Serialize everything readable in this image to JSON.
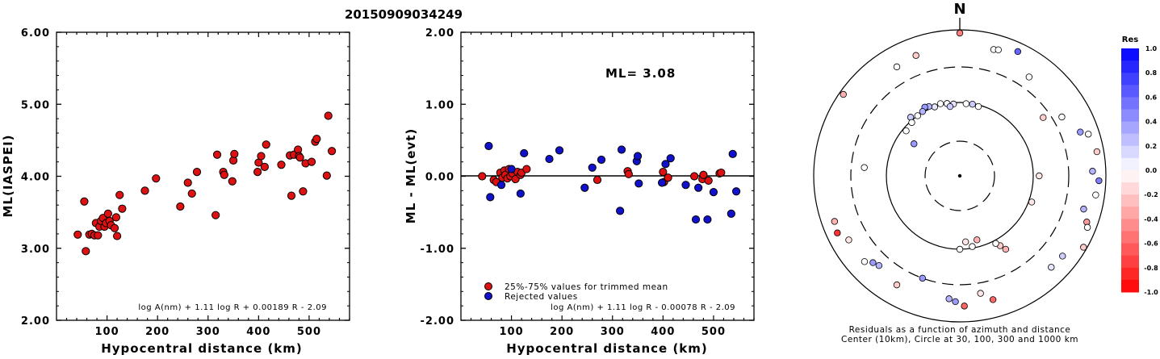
{
  "title": "20150909034249",
  "chart_data": [
    {
      "type": "scatter",
      "title": "",
      "xlabel": "Hypocentral distance (km)",
      "ylabel": "ML(IASPEI)",
      "xlim": [
        0,
        580
      ],
      "ylim": [
        2.0,
        6.0
      ],
      "xticks": [
        "100",
        "200",
        "300",
        "400",
        "500"
      ],
      "yticks": [
        "2.00",
        "3.00",
        "4.00",
        "5.00",
        "6.00"
      ],
      "annotation": "log A(nm) + 1.11 log R + 0.00189 R - 2.09",
      "point_color": "#dd1111",
      "points": [
        [
          42,
          3.19
        ],
        [
          55,
          3.65
        ],
        [
          58,
          2.96
        ],
        [
          65,
          3.19
        ],
        [
          70,
          3.2
        ],
        [
          75,
          3.18
        ],
        [
          78,
          3.35
        ],
        [
          82,
          3.18
        ],
        [
          85,
          3.3
        ],
        [
          88,
          3.38
        ],
        [
          92,
          3.42
        ],
        [
          95,
          3.3
        ],
        [
          98,
          3.35
        ],
        [
          102,
          3.48
        ],
        [
          105,
          3.38
        ],
        [
          108,
          3.32
        ],
        [
          115,
          3.28
        ],
        [
          118,
          3.43
        ],
        [
          120,
          3.17
        ],
        [
          125,
          3.74
        ],
        [
          130,
          3.55
        ],
        [
          175,
          3.8
        ],
        [
          197,
          3.97
        ],
        [
          245,
          3.58
        ],
        [
          260,
          3.91
        ],
        [
          268,
          3.76
        ],
        [
          278,
          4.06
        ],
        [
          315,
          3.46
        ],
        [
          318,
          4.3
        ],
        [
          330,
          4.06
        ],
        [
          332,
          4.02
        ],
        [
          348,
          3.93
        ],
        [
          350,
          4.22
        ],
        [
          352,
          4.31
        ],
        [
          398,
          4.06
        ],
        [
          400,
          4.19
        ],
        [
          405,
          4.28
        ],
        [
          412,
          4.13
        ],
        [
          415,
          4.44
        ],
        [
          445,
          4.16
        ],
        [
          462,
          4.29
        ],
        [
          465,
          3.73
        ],
        [
          470,
          4.3
        ],
        [
          478,
          4.37
        ],
        [
          480,
          4.28
        ],
        [
          482,
          4.26
        ],
        [
          488,
          3.79
        ],
        [
          493,
          4.18
        ],
        [
          505,
          4.2
        ],
        [
          512,
          4.48
        ],
        [
          515,
          4.52
        ],
        [
          535,
          4.01
        ],
        [
          538,
          4.84
        ],
        [
          545,
          4.35
        ]
      ]
    },
    {
      "type": "scatter",
      "title": "",
      "xlabel": "Hypocentral distance (km)",
      "ylabel": "ML - ML(evt)",
      "xlim": [
        0,
        580
      ],
      "ylim": [
        -2.0,
        2.0
      ],
      "xticks": [
        "100",
        "200",
        "300",
        "400",
        "500"
      ],
      "yticks": [
        "-2.00",
        "-1.00",
        "0.00",
        "1.00",
        "2.00"
      ],
      "ml_label": "ML= 3.08",
      "legend": [
        "25%-75% values for trimmed mean",
        "Rejected values"
      ],
      "annotation": "log A(nm) + 1.11 log R - 0.00078 R - 2.09",
      "series": [
        {
          "name": "25%-75% values for trimmed mean",
          "color": "#dd1111",
          "points": [
            [
              42,
              0.0
            ],
            [
              65,
              -0.05
            ],
            [
              70,
              -0.08
            ],
            [
              78,
              0.05
            ],
            [
              82,
              -0.02
            ],
            [
              86,
              0.08
            ],
            [
              88,
              0.02
            ],
            [
              92,
              -0.03
            ],
            [
              95,
              0.1
            ],
            [
              98,
              0.0
            ],
            [
              102,
              0.04
            ],
            [
              108,
              -0.04
            ],
            [
              112,
              0.06
            ],
            [
              118,
              0.02
            ],
            [
              120,
              0.05
            ],
            [
              130,
              0.1
            ],
            [
              270,
              -0.05
            ],
            [
              330,
              0.07
            ],
            [
              332,
              0.03
            ],
            [
              400,
              0.06
            ],
            [
              402,
              -0.08
            ],
            [
              410,
              -0.02
            ],
            [
              462,
              0.0
            ],
            [
              478,
              -0.04
            ],
            [
              480,
              0.02
            ],
            [
              490,
              -0.06
            ],
            [
              512,
              0.04
            ],
            [
              515,
              0.05
            ]
          ]
        },
        {
          "name": "Rejected values",
          "color": "#1111cc",
          "points": [
            [
              55,
              0.42
            ],
            [
              58,
              -0.29
            ],
            [
              80,
              -0.12
            ],
            [
              100,
              0.1
            ],
            [
              118,
              -0.24
            ],
            [
              125,
              0.32
            ],
            [
              175,
              0.24
            ],
            [
              195,
              0.36
            ],
            [
              245,
              -0.16
            ],
            [
              260,
              0.12
            ],
            [
              278,
              0.23
            ],
            [
              315,
              -0.48
            ],
            [
              318,
              0.37
            ],
            [
              348,
              0.21
            ],
            [
              350,
              0.28
            ],
            [
              352,
              -0.1
            ],
            [
              398,
              -0.09
            ],
            [
              405,
              0.17
            ],
            [
              415,
              0.25
            ],
            [
              445,
              -0.12
            ],
            [
              465,
              -0.6
            ],
            [
              470,
              -0.16
            ],
            [
              488,
              -0.6
            ],
            [
              500,
              -0.22
            ],
            [
              535,
              -0.52
            ],
            [
              538,
              0.31
            ],
            [
              545,
              -0.21
            ]
          ]
        }
      ]
    },
    {
      "type": "polar-scatter",
      "north_label": "N",
      "caption_line1": "Residuals as a function of azimuth and distance",
      "caption_line2": "Center (10km), Circle at 30, 100, 300 and 1000 km",
      "colorbar_title": "Res",
      "colorbar_ticks": [
        "1.0",
        "0.8",
        "0.6",
        "0.4",
        "0.2",
        "0.0",
        "-0.2",
        "-0.4",
        "-0.6",
        "-0.8",
        "-1.0"
      ],
      "points": [
        {
          "az": 0,
          "dist": 900,
          "res": -0.5
        },
        {
          "az": 15,
          "dist": 610,
          "res": 0.0
        },
        {
          "az": 17,
          "dist": 630,
          "res": 0.0
        },
        {
          "az": 25,
          "dist": 750,
          "res": 0.6
        },
        {
          "az": 35,
          "dist": 440,
          "res": 0.0
        },
        {
          "az": 340,
          "dist": 560,
          "res": -0.2
        },
        {
          "az": 330,
          "dist": 520,
          "res": 0.0
        },
        {
          "az": 350,
          "dist": 100,
          "res": 0.0
        },
        {
          "az": 355,
          "dist": 96,
          "res": 0.1
        },
        {
          "az": 352,
          "dist": 90,
          "res": 0.2
        },
        {
          "az": 345,
          "dist": 104,
          "res": 0.0
        },
        {
          "az": 340,
          "dist": 100,
          "res": 0.1
        },
        {
          "az": 336,
          "dist": 108,
          "res": 0.3
        },
        {
          "az": 333,
          "dist": 112,
          "res": 0.4
        },
        {
          "az": 330,
          "dist": 103,
          "res": 0.3
        },
        {
          "az": 325,
          "dist": 100,
          "res": 0.0
        },
        {
          "az": 320,
          "dist": 110,
          "res": 0.2
        },
        {
          "az": 318,
          "dist": 95,
          "res": 0.0
        },
        {
          "az": 5,
          "dist": 97,
          "res": 0.0
        },
        {
          "az": 10,
          "dist": 98,
          "res": 0.2
        },
        {
          "az": 15,
          "dist": 95,
          "res": 0.0
        },
        {
          "az": 310,
          "dist": 90,
          "res": 0.0
        },
        {
          "az": 305,
          "dist": 58,
          "res": 0.4
        },
        {
          "az": 275,
          "dist": 200,
          "res": 0.0
        },
        {
          "az": 305,
          "dist": 880,
          "res": -0.3
        },
        {
          "az": 55,
          "dist": 240,
          "res": -0.2
        },
        {
          "az": 60,
          "dist": 400,
          "res": 0.0
        },
        {
          "az": 90,
          "dist": 120,
          "res": -0.1
        },
        {
          "az": 110,
          "dist": 110,
          "res": -0.1
        },
        {
          "az": 70,
          "dist": 560,
          "res": 0.4
        },
        {
          "az": 72,
          "dist": 700,
          "res": 0.0
        },
        {
          "az": 80,
          "dist": 800,
          "res": -0.2
        },
        {
          "az": 88,
          "dist": 650,
          "res": 0.3
        },
        {
          "az": 92,
          "dist": 800,
          "res": 0.5
        },
        {
          "az": 98,
          "dist": 750,
          "res": 0.0
        },
        {
          "az": 105,
          "dist": 560,
          "res": 0.3
        },
        {
          "az": 110,
          "dist": 700,
          "res": -0.4
        },
        {
          "az": 112,
          "dist": 760,
          "res": 0.0
        },
        {
          "az": 120,
          "dist": 900,
          "res": -0.2
        },
        {
          "az": 128,
          "dist": 600,
          "res": 0.2
        },
        {
          "az": 135,
          "dist": 580,
          "res": 0.1
        },
        {
          "az": 148,
          "dist": 150,
          "res": -0.3
        },
        {
          "az": 150,
          "dist": 125,
          "res": -0.2
        },
        {
          "az": 152,
          "dist": 110,
          "res": 0.0
        },
        {
          "az": 170,
          "dist": 95,
          "res": 0.0
        },
        {
          "az": 175,
          "dist": 80,
          "res": -0.1
        },
        {
          "az": 165,
          "dist": 80,
          "res": -0.3
        },
        {
          "az": 180,
          "dist": 100,
          "res": 0.0
        },
        {
          "az": 165,
          "dist": 560,
          "res": -0.6
        },
        {
          "az": 170,
          "dist": 420,
          "res": -0.1
        },
        {
          "az": 178,
          "dist": 600,
          "res": -0.6
        },
        {
          "az": 182,
          "dist": 520,
          "res": 0.4
        },
        {
          "az": 185,
          "dist": 480,
          "res": 0.3
        },
        {
          "az": 200,
          "dist": 300,
          "res": 0.4
        },
        {
          "az": 210,
          "dist": 520,
          "res": -0.2
        },
        {
          "az": 222,
          "dist": 440,
          "res": 0.3
        },
        {
          "az": 225,
          "dist": 470,
          "res": 0.4
        },
        {
          "az": 228,
          "dist": 560,
          "res": 0.0
        },
        {
          "az": 245,
          "dist": 700,
          "res": -0.8
        },
        {
          "az": 250,
          "dist": 660,
          "res": -0.3
        },
        {
          "az": 240,
          "dist": 560,
          "res": -0.1
        }
      ]
    }
  ]
}
